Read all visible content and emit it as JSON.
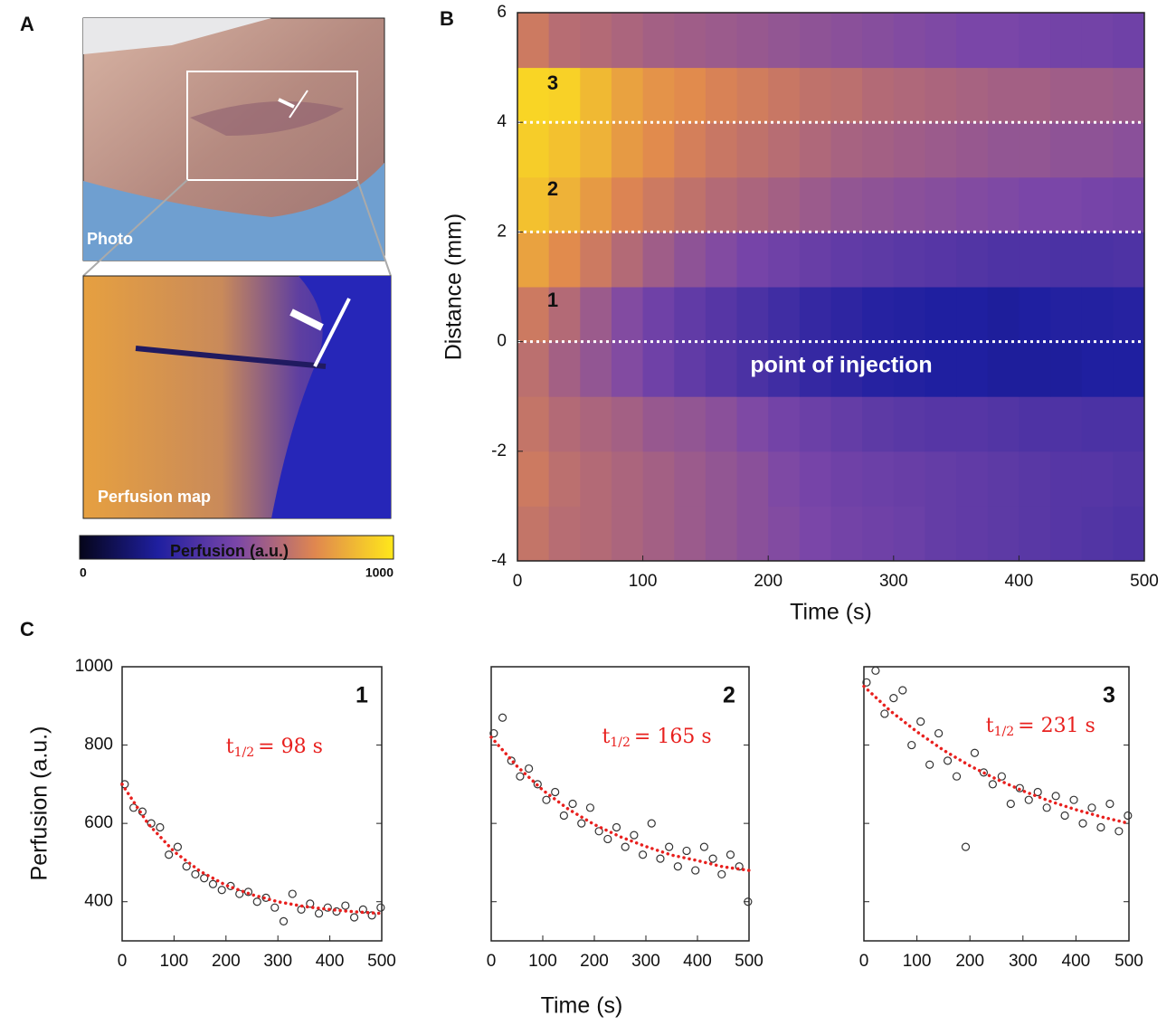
{
  "panel_labels": [
    "A",
    "B",
    "C"
  ],
  "photo": {
    "photo_label": "Photo",
    "map_label": "Perfusion map"
  },
  "panel_c": {
    "xlabel": "Time (s)",
    "ylabel": "Perfusion (a.u.)"
  },
  "chart_data": [
    {
      "type": "heatmap",
      "xlabel": "Time (s)",
      "ylabel": "Distance (mm)",
      "annotation": "point of injection",
      "region_labels": [
        "1",
        "2",
        "3"
      ],
      "reference_lines": [
        0,
        2,
        4
      ],
      "xlim": [
        0,
        500
      ],
      "xticks": [
        0,
        100,
        200,
        300,
        400,
        500
      ],
      "ylim": [
        -4,
        6
      ],
      "yticks": [
        -4,
        -2,
        0,
        2,
        4,
        6
      ],
      "x_bins": [
        0,
        25,
        50,
        75,
        100,
        125,
        150,
        175,
        200,
        225,
        250,
        275,
        300,
        325,
        350,
        375,
        400,
        425,
        450,
        475,
        500
      ],
      "y_bins": [
        -4,
        -3,
        -2,
        -1,
        0,
        1,
        2,
        3,
        4,
        5,
        6
      ],
      "values": [
        [
          680,
          650,
          640,
          620,
          600,
          580,
          560,
          540,
          520,
          500,
          480,
          470,
          460,
          440,
          430,
          420,
          410,
          400,
          390,
          380
        ],
        [
          700,
          660,
          640,
          620,
          600,
          580,
          560,
          540,
          510,
          490,
          470,
          460,
          450,
          440,
          430,
          420,
          410,
          400,
          400,
          390
        ],
        [
          680,
          640,
          620,
          600,
          570,
          560,
          540,
          510,
          480,
          460,
          440,
          420,
          410,
          400,
          400,
          390,
          380,
          380,
          370,
          370
        ],
        [
          660,
          600,
          560,
          520,
          470,
          430,
          400,
          370,
          340,
          310,
          290,
          270,
          260,
          250,
          250,
          240,
          240,
          240,
          250,
          250
        ],
        [
          700,
          640,
          580,
          520,
          470,
          430,
          400,
          370,
          340,
          310,
          290,
          270,
          260,
          250,
          250,
          240,
          250,
          260,
          260,
          270
        ],
        [
          820,
          760,
          700,
          640,
          590,
          550,
          520,
          490,
          470,
          450,
          430,
          420,
          410,
          400,
          390,
          380,
          380,
          370,
          370,
          380
        ],
        [
          900,
          860,
          800,
          740,
          700,
          670,
          640,
          620,
          600,
          580,
          560,
          550,
          540,
          530,
          520,
          510,
          500,
          500,
          490,
          480
        ],
        [
          930,
          900,
          860,
          800,
          760,
          720,
          690,
          670,
          650,
          630,
          610,
          600,
          590,
          580,
          570,
          560,
          560,
          550,
          550,
          540
        ],
        [
          950,
          940,
          880,
          820,
          780,
          760,
          730,
          710,
          690,
          670,
          660,
          640,
          630,
          620,
          610,
          600,
          600,
          590,
          590,
          580
        ],
        [
          700,
          650,
          640,
          620,
          600,
          590,
          580,
          570,
          560,
          550,
          540,
          530,
          520,
          510,
          500,
          500,
          490,
          480,
          480,
          470
        ]
      ],
      "colormap": [
        "#05051a",
        "#1f1fa0",
        "#7a46a8",
        "#e0874f",
        "#ffe81a"
      ],
      "colorbar": {
        "title": "Perfusion (a.u.)",
        "lim": [
          0,
          1000
        ],
        "ticks": [
          0,
          1000
        ]
      }
    },
    {
      "type": "scatter",
      "label": "1",
      "annotation": {
        "main": "t",
        "sub": "1/2",
        "rest": "= 98 s"
      },
      "xlim": [
        0,
        500
      ],
      "xticks": [
        0,
        100,
        200,
        300,
        400,
        500
      ],
      "ylim": [
        300,
        1000
      ],
      "yticks": [
        400,
        600,
        800,
        1000
      ],
      "ytick_labels": true,
      "marker_color": "#333333",
      "x": [
        5,
        22,
        39,
        56,
        73,
        90,
        107,
        124,
        141,
        158,
        175,
        192,
        209,
        226,
        243,
        260,
        277,
        294,
        311,
        328,
        345,
        362,
        379,
        396,
        413,
        430,
        447,
        464,
        481,
        498
      ],
      "values": [
        700,
        640,
        630,
        600,
        590,
        520,
        540,
        490,
        470,
        460,
        445,
        430,
        440,
        420,
        425,
        400,
        410,
        385,
        350,
        420,
        380,
        395,
        370,
        385,
        375,
        390,
        360,
        380,
        365,
        385
      ],
      "fit": {
        "color": "#e8201e",
        "x": [
          0,
          50,
          100,
          150,
          200,
          250,
          300,
          350,
          400,
          450,
          500
        ],
        "values": [
          700,
          599,
          528,
          478,
          442,
          418,
          400,
          388,
          380,
          374,
          370
        ]
      }
    },
    {
      "type": "scatter",
      "label": "2",
      "annotation": {
        "main": "t",
        "sub": "1/2",
        "rest": "= 165 s"
      },
      "xlim": [
        0,
        500
      ],
      "xticks": [
        0,
        100,
        200,
        300,
        400,
        500
      ],
      "ylim": [
        300,
        1000
      ],
      "yticks": [
        400,
        600,
        800,
        1000
      ],
      "ytick_labels": false,
      "marker_color": "#333333",
      "x": [
        5,
        22,
        39,
        56,
        73,
        90,
        107,
        124,
        141,
        158,
        175,
        192,
        209,
        226,
        243,
        260,
        277,
        294,
        311,
        328,
        345,
        362,
        379,
        396,
        413,
        430,
        447,
        464,
        481,
        498
      ],
      "values": [
        830,
        870,
        760,
        720,
        740,
        700,
        660,
        680,
        620,
        650,
        600,
        640,
        580,
        560,
        590,
        540,
        570,
        520,
        600,
        510,
        540,
        490,
        530,
        480,
        540,
        510,
        470,
        520,
        490,
        400
      ],
      "fit": {
        "color": "#e8201e",
        "x": [
          0,
          50,
          100,
          150,
          200,
          250,
          300,
          350,
          400,
          450,
          500
        ],
        "values": [
          820,
          746,
          685,
          636,
          597,
          566,
          541,
          519,
          505,
          489,
          480
        ]
      }
    },
    {
      "type": "scatter",
      "label": "3",
      "annotation": {
        "main": "t",
        "sub": "1/2",
        "rest": "= 231 s"
      },
      "xlim": [
        0,
        500
      ],
      "xticks": [
        0,
        100,
        200,
        300,
        400,
        500
      ],
      "ylim": [
        300,
        1000
      ],
      "yticks": [
        400,
        600,
        800,
        1000
      ],
      "ytick_labels": false,
      "marker_color": "#333333",
      "x": [
        5,
        22,
        39,
        56,
        73,
        90,
        107,
        124,
        141,
        158,
        175,
        192,
        209,
        226,
        243,
        260,
        277,
        294,
        311,
        328,
        345,
        362,
        379,
        396,
        413,
        430,
        447,
        464,
        481,
        498
      ],
      "values": [
        960,
        990,
        880,
        920,
        940,
        800,
        860,
        750,
        830,
        760,
        720,
        540,
        780,
        730,
        700,
        720,
        650,
        690,
        660,
        680,
        640,
        670,
        620,
        660,
        600,
        640,
        590,
        650,
        580,
        620
      ],
      "fit": {
        "color": "#e8201e",
        "x": [
          0,
          50,
          100,
          150,
          200,
          250,
          300,
          350,
          400,
          450,
          500
        ],
        "values": [
          950,
          887,
          834,
          787,
          747,
          713,
          683,
          657,
          635,
          616,
          600
        ]
      }
    }
  ]
}
